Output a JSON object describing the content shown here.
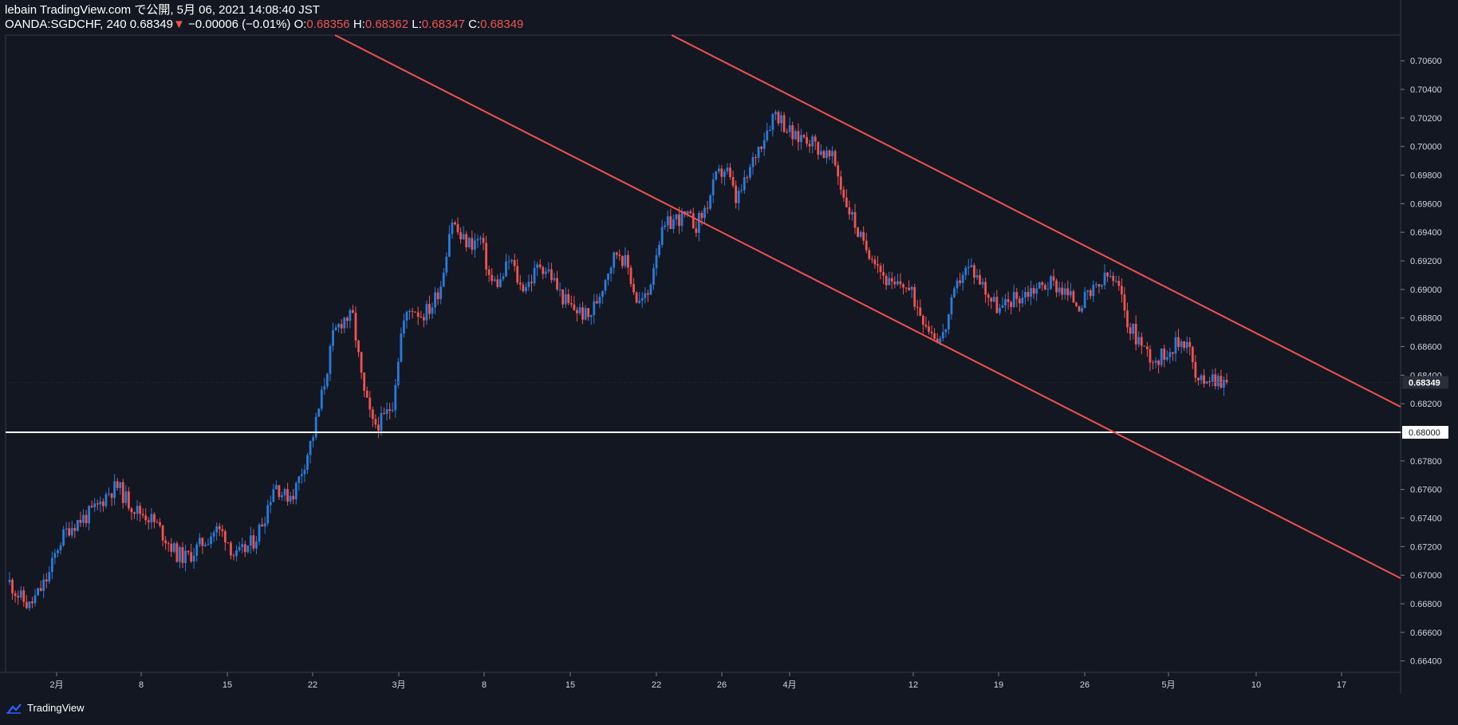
{
  "header": {
    "line1": "lebain TradingView.com で公開, 5月 06, 2021 14:08:40 JST",
    "symbol": "OANDA:SGDCHF, 240 0.68349",
    "arrow": "▼",
    "change": "−0.00006 (−0.01%)",
    "o_label": "O:",
    "o_value": "0.68356",
    "h_label": "H:",
    "h_value": "0.68362",
    "l_label": "L:",
    "l_value": "0.68347",
    "c_label": "C:",
    "c_value": "0.68349"
  },
  "footer": {
    "brand": "TradingView",
    "icon": "tradingview-cloud-icon"
  },
  "colors": {
    "background": "#131722",
    "up": "#2a7bd9",
    "down": "#ef5350",
    "trendline": "#f0534f",
    "support": "#ffffff",
    "grid": "#2a2e39"
  },
  "chart_data": {
    "type": "candlestick",
    "ylim": [
      0.6632,
      0.7078
    ],
    "y_ticks": [
      "0.70600",
      "0.70400",
      "0.70200",
      "0.70000",
      "0.69800",
      "0.69600",
      "0.69400",
      "0.69200",
      "0.69000",
      "0.68800",
      "0.68600",
      "0.68400",
      "0.68200",
      "0.68000",
      "0.67800",
      "0.67600",
      "0.67400",
      "0.67200",
      "0.67000",
      "0.66800",
      "0.66600",
      "0.66400"
    ],
    "x_ticks": [
      "2月",
      "8",
      "15",
      "22",
      "3月",
      "8",
      "15",
      "22",
      "26",
      "4月",
      "12",
      "19",
      "26",
      "5月",
      "10",
      "17"
    ],
    "last_price_label": "0.68349",
    "support_level": 0.68,
    "support_label": "0.68000",
    "price_path": [
      0.6695,
      0.6685,
      0.6678,
      0.6688,
      0.67,
      0.6722,
      0.6733,
      0.6738,
      0.6742,
      0.6748,
      0.6758,
      0.6762,
      0.6752,
      0.6745,
      0.6742,
      0.6735,
      0.6725,
      0.6715,
      0.6712,
      0.6718,
      0.6725,
      0.6732,
      0.6728,
      0.6712,
      0.6718,
      0.6725,
      0.6742,
      0.6765,
      0.6755,
      0.6758,
      0.6778,
      0.68,
      0.6832,
      0.6868,
      0.688,
      0.688,
      0.683,
      0.6805,
      0.6808,
      0.682,
      0.6875,
      0.6888,
      0.6882,
      0.6888,
      0.6905,
      0.695,
      0.6935,
      0.6932,
      0.6935,
      0.6905,
      0.6905,
      0.6922,
      0.6902,
      0.6905,
      0.6918,
      0.6912,
      0.6898,
      0.6888,
      0.6885,
      0.688,
      0.6895,
      0.6915,
      0.6928,
      0.6915,
      0.689,
      0.6895,
      0.6932,
      0.6945,
      0.695,
      0.695,
      0.6945,
      0.6958,
      0.6978,
      0.6985,
      0.6962,
      0.6975,
      0.6995,
      0.701,
      0.7025,
      0.7015,
      0.7005,
      0.7008,
      0.7002,
      0.6995,
      0.699,
      0.6965,
      0.6948,
      0.693,
      0.6925,
      0.691,
      0.69,
      0.6905,
      0.6895,
      0.6882,
      0.687,
      0.6865,
      0.689,
      0.6912,
      0.6915,
      0.6905,
      0.6893,
      0.6885,
      0.6893,
      0.6895,
      0.69,
      0.6902,
      0.6905,
      0.6902,
      0.6895,
      0.689,
      0.6895,
      0.6902,
      0.691,
      0.69,
      0.6875,
      0.6865,
      0.6855,
      0.685,
      0.6858,
      0.6862,
      0.6866,
      0.6832,
      0.684,
      0.6838,
      0.6835
    ]
  }
}
